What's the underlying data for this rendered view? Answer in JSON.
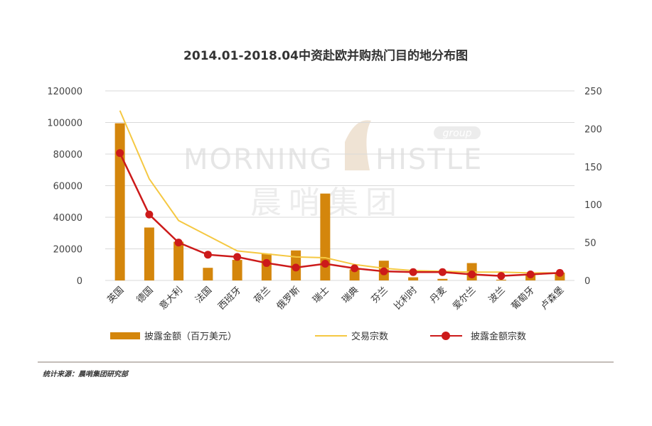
{
  "chart_data": {
    "type": "bar+line",
    "title": "2014.01-2018.04中资赴欧并购热门目的地分布图",
    "categories": [
      "英国",
      "德国",
      "意大利",
      "法国",
      "西班牙",
      "荷兰",
      "俄罗斯",
      "瑞士",
      "瑞典",
      "芬兰",
      "比利时",
      "丹麦",
      "爱尔兰",
      "波兰",
      "葡萄牙",
      "卢森堡"
    ],
    "left_axis": {
      "ylim": [
        0,
        120000
      ],
      "ticks": [
        "0",
        "20000",
        "40000",
        "60000",
        "80000",
        "100000",
        "120000"
      ]
    },
    "right_axis": {
      "ylim": [
        0,
        250
      ],
      "ticks": [
        "0",
        "50",
        "100",
        "150",
        "200",
        "250"
      ]
    },
    "series": [
      {
        "name": "披露金额（百万美元）",
        "type": "bar",
        "axis": "left",
        "color": "#d4860c",
        "values": [
          99500,
          33500,
          24500,
          8000,
          13000,
          17000,
          19000,
          55000,
          7000,
          12500,
          2000,
          1000,
          11000,
          500,
          4000,
          5000
        ]
      },
      {
        "name": "交易宗数",
        "type": "line",
        "axis": "right",
        "color": "#f5c842",
        "values": [
          224,
          134,
          79,
          59,
          39,
          35,
          31,
          30,
          21,
          16,
          13,
          12,
          11,
          11,
          10,
          10
        ]
      },
      {
        "name": "披露金额宗数",
        "type": "line-marker",
        "axis": "right",
        "color": "#cc1a1a",
        "values": [
          168,
          87,
          50,
          34,
          31,
          23,
          17,
          22,
          16,
          12,
          11,
          11,
          8,
          6,
          8,
          10
        ]
      }
    ],
    "grid": true,
    "legend_position": "bottom"
  },
  "watermark": {
    "brand_left": "MORNING",
    "brand_right": "HISTLE",
    "badge": "group",
    "chinese": "晨哨集团"
  },
  "source_note": "统计来源：晨哨集团研究部"
}
